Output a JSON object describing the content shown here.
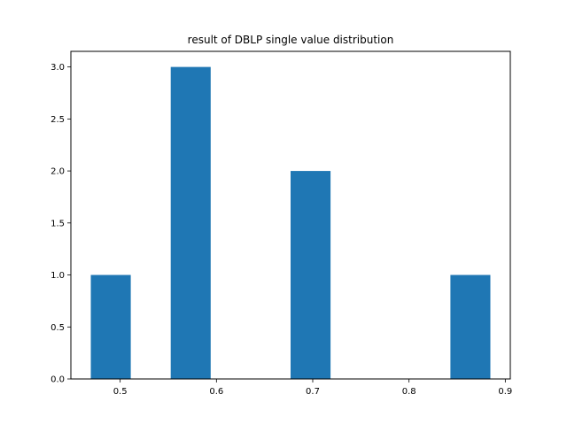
{
  "chart_data": {
    "type": "bar",
    "title": "result of DBLP single value distribution",
    "xlabel": "",
    "ylabel": "",
    "histogram": true,
    "bins": [
      {
        "start": 0.4695,
        "end": 0.511,
        "count": 1
      },
      {
        "start": 0.5525,
        "end": 0.594,
        "count": 3
      },
      {
        "start": 0.677,
        "end": 0.7185,
        "count": 2
      },
      {
        "start": 0.843,
        "end": 0.8845,
        "count": 1
      }
    ],
    "xlim": [
      0.4488,
      0.9052
    ],
    "ylim": [
      0,
      3.15
    ],
    "xticks": [
      0.5,
      0.6,
      0.7,
      0.8,
      0.9
    ],
    "xtick_labels": [
      "0.5",
      "0.6",
      "0.7",
      "0.8",
      "0.9"
    ],
    "yticks": [
      0.0,
      0.5,
      1.0,
      1.5,
      2.0,
      2.5,
      3.0
    ],
    "ytick_labels": [
      "0.0",
      "0.5",
      "1.0",
      "1.5",
      "2.0",
      "2.5",
      "3.0"
    ],
    "bar_color": "#1f77b4",
    "grid": false,
    "legend": "none"
  }
}
